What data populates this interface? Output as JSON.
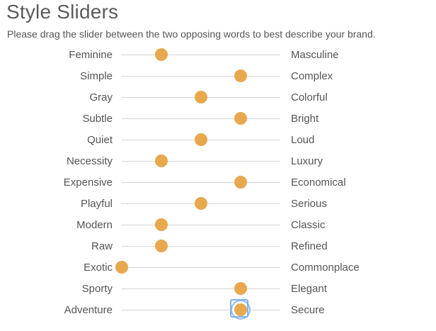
{
  "header": {
    "title": "Style Sliders",
    "subtitle": "Please drag the slider between the two opposing words to best describe your brand."
  },
  "accent_color": "#e8a84e",
  "track_color": "#d4d4d4",
  "focus_color": "#7fb0ee",
  "sliders": [
    {
      "left": "Feminine",
      "right": "Masculine",
      "value": 0.25
    },
    {
      "left": "Simple",
      "right": "Complex",
      "value": 0.75
    },
    {
      "left": "Gray",
      "right": "Colorful",
      "value": 0.5
    },
    {
      "left": "Subtle",
      "right": "Bright",
      "value": 0.75
    },
    {
      "left": "Quiet",
      "right": "Loud",
      "value": 0.5
    },
    {
      "left": "Necessity",
      "right": "Luxury",
      "value": 0.25
    },
    {
      "left": "Expensive",
      "right": "Economical",
      "value": 0.75
    },
    {
      "left": "Playful",
      "right": "Serious",
      "value": 0.5
    },
    {
      "left": "Modern",
      "right": "Classic",
      "value": 0.25
    },
    {
      "left": "Raw",
      "right": "Refined",
      "value": 0.25
    },
    {
      "left": "Exotic",
      "right": "Commonplace",
      "value": 0.0
    },
    {
      "left": "Sporty",
      "right": "Elegant",
      "value": 0.75
    },
    {
      "left": "Adventure",
      "right": "Secure",
      "value": 0.75,
      "focused": true
    }
  ]
}
